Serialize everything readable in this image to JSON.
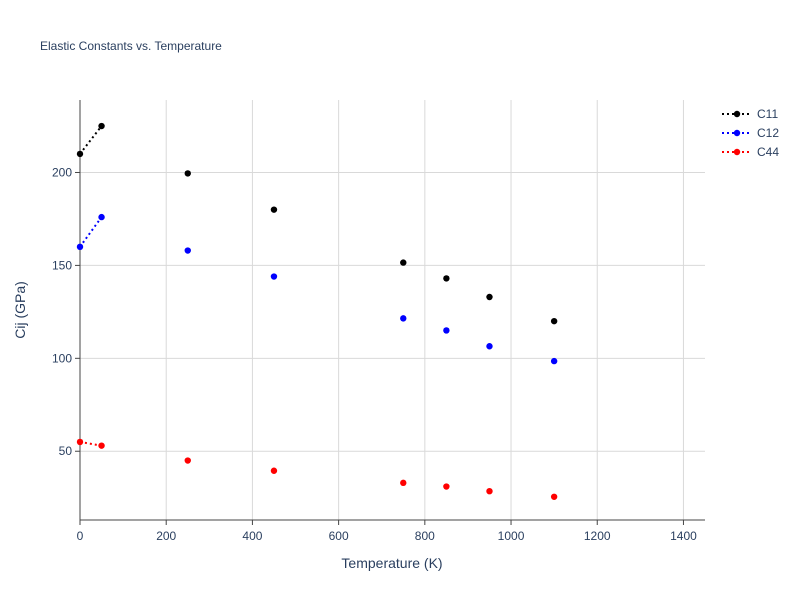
{
  "chart_data": {
    "type": "scatter",
    "title": "Elastic Constants vs. Temperature",
    "xlabel": "Temperature (K)",
    "ylabel": "Cij (GPa)",
    "xlim": [
      0,
      1450
    ],
    "ylim": [
      13,
      239
    ],
    "xticks": [
      0,
      200,
      400,
      600,
      800,
      1000,
      1200,
      1400
    ],
    "yticks": [
      50,
      100,
      150,
      200
    ],
    "grid": true,
    "legend": "top-right",
    "series": [
      {
        "name": "C11",
        "color": "#000000",
        "x": [
          0,
          50,
          250,
          450,
          750,
          850,
          950,
          1100
        ],
        "y": [
          210,
          225,
          199.5,
          180,
          151.5,
          143,
          133,
          120
        ],
        "line_segment_points": 2
      },
      {
        "name": "C12",
        "color": "#0000ff",
        "x": [
          0,
          50,
          250,
          450,
          750,
          850,
          950,
          1100
        ],
        "y": [
          160,
          176,
          158,
          144,
          121.5,
          115,
          106.5,
          98.5
        ],
        "line_segment_points": 2
      },
      {
        "name": "C44",
        "color": "#ff0000",
        "x": [
          0,
          50,
          250,
          450,
          750,
          850,
          950,
          1100
        ],
        "y": [
          55,
          53,
          45,
          39.5,
          33,
          31,
          28.5,
          25.5
        ],
        "line_segment_points": 2
      }
    ]
  }
}
